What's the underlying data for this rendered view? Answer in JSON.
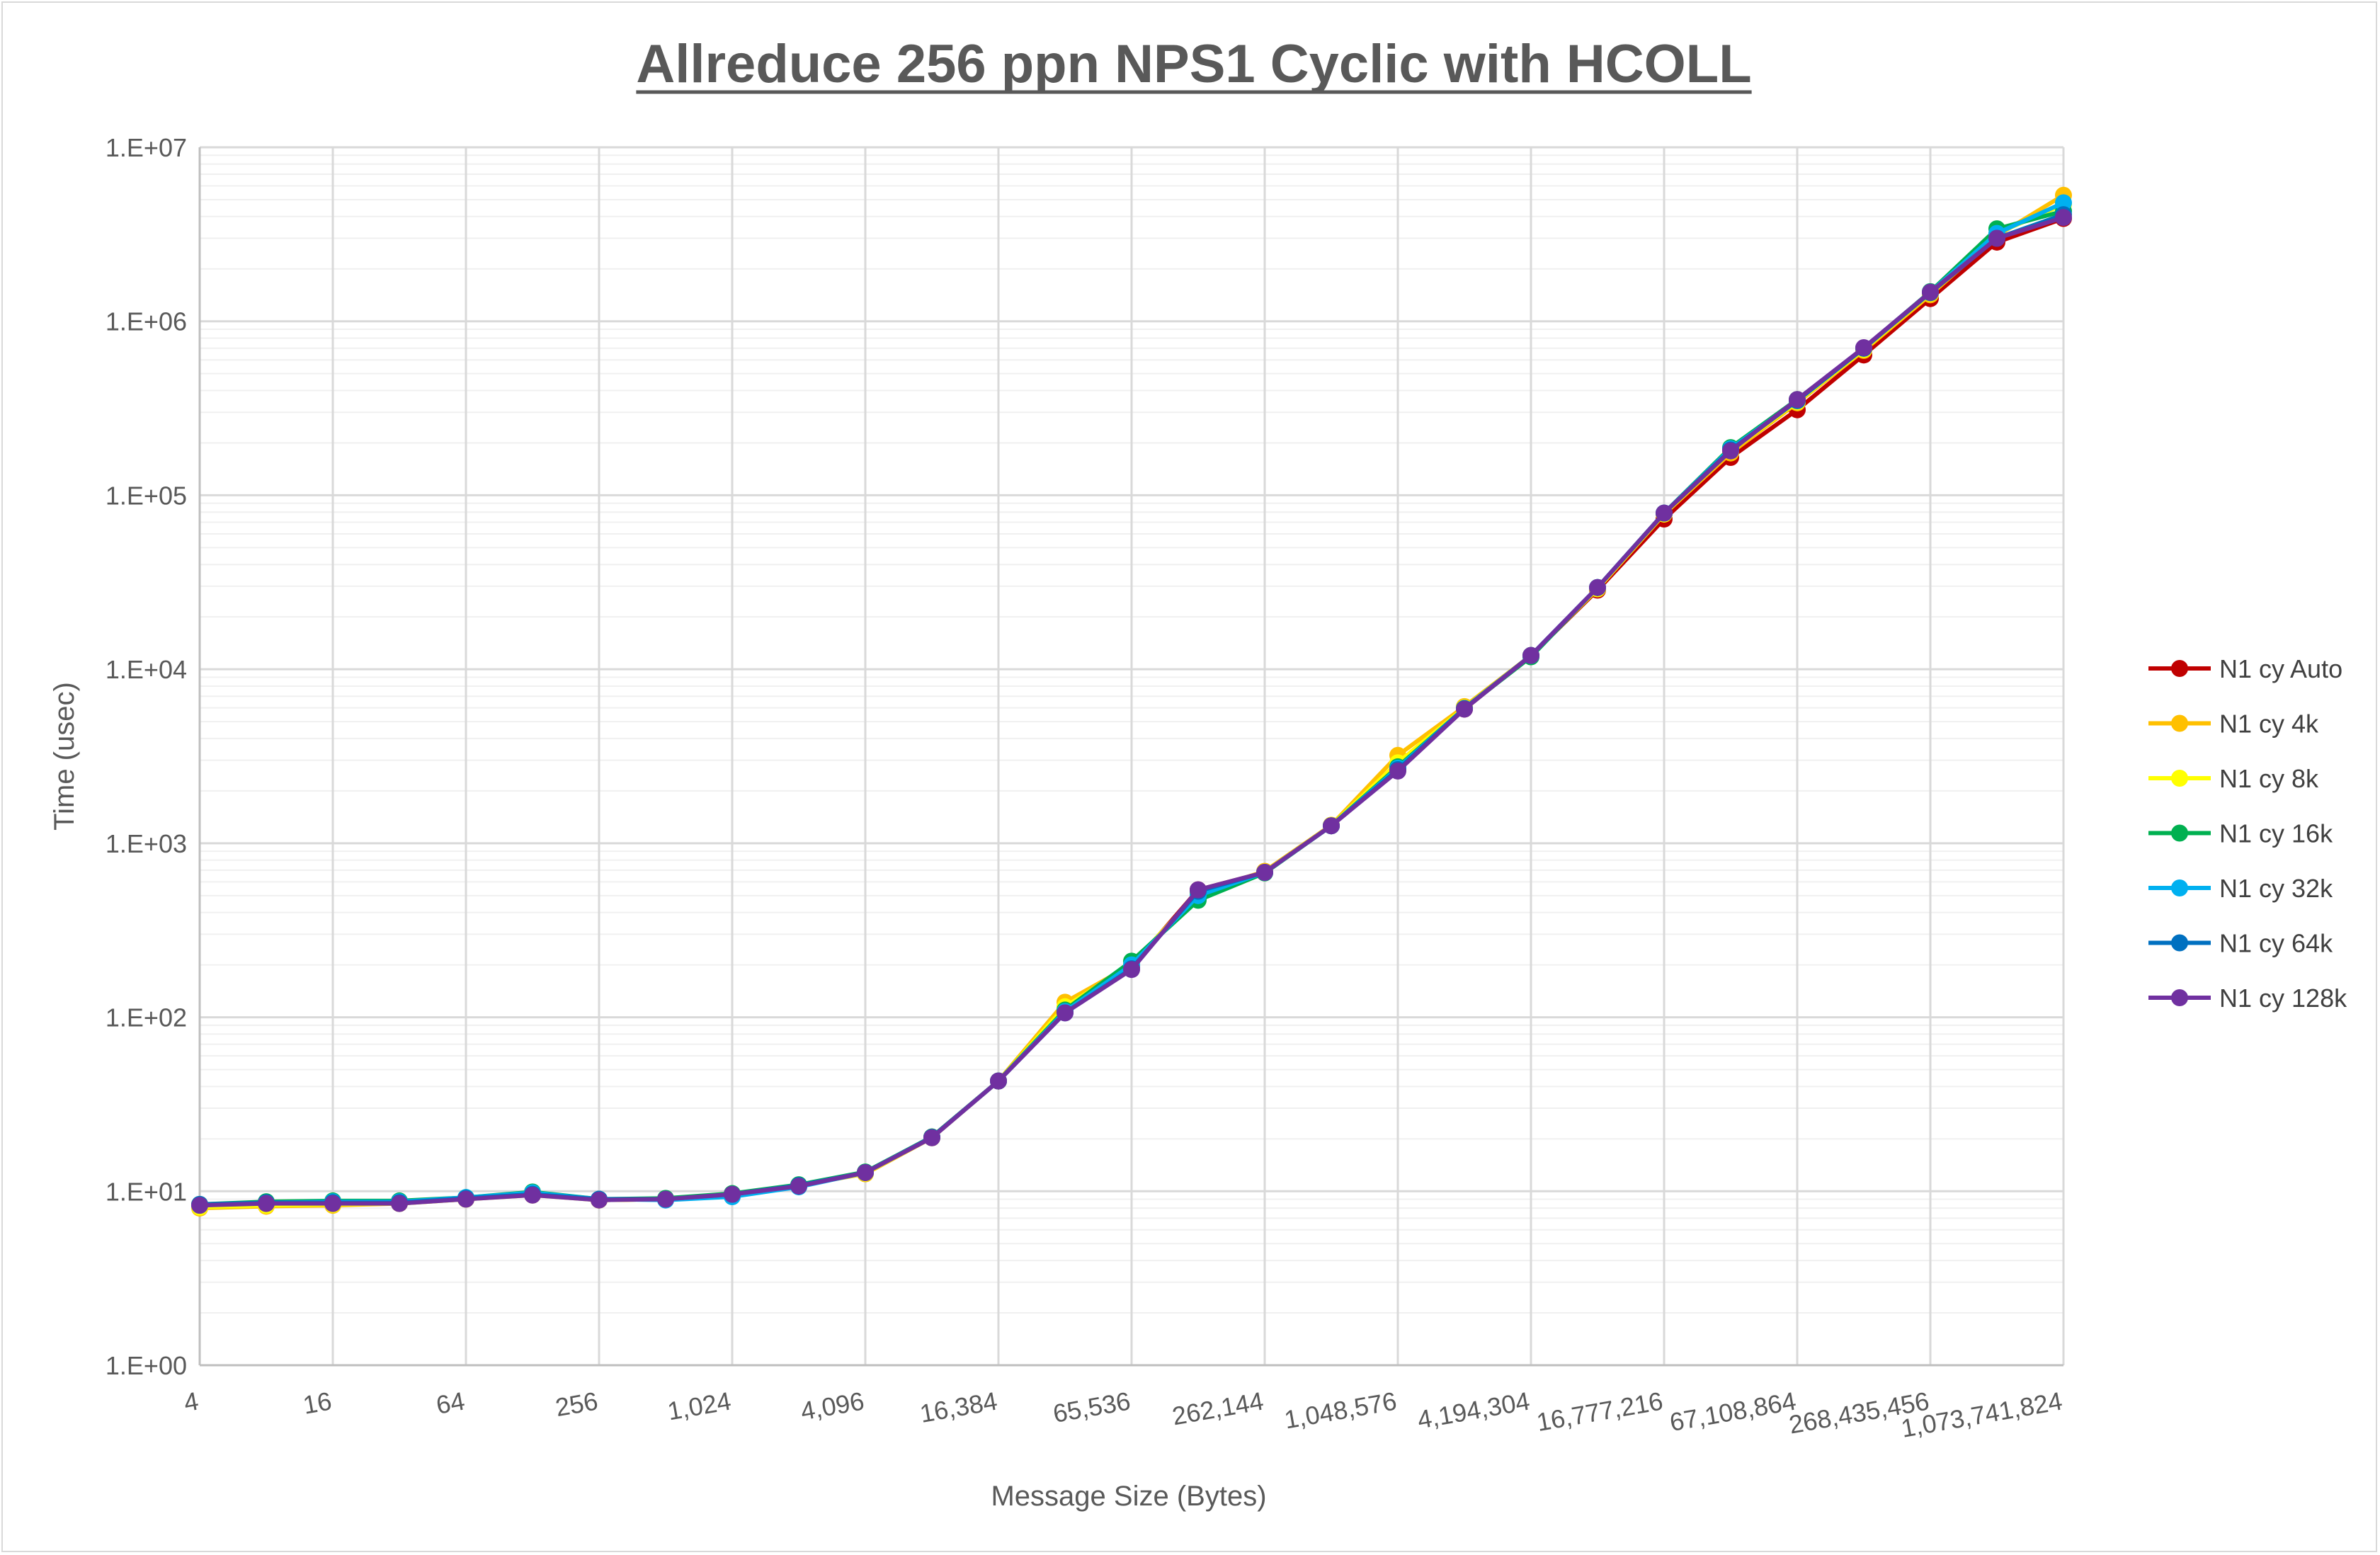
{
  "chart_data": {
    "type": "line",
    "title": "Allreduce 256 ppn NPS1 Cyclic with HCOLL",
    "xlabel": "Message Size (Bytes)",
    "ylabel": "Time (usec)",
    "y_scale": "log",
    "ylim": [
      1,
      10000000
    ],
    "y_ticks": [
      "1.E+00",
      "1.E+01",
      "1.E+02",
      "1.E+03",
      "1.E+04",
      "1.E+05",
      "1.E+06",
      "1.E+07"
    ],
    "x": [
      4,
      8,
      16,
      32,
      64,
      128,
      256,
      512,
      1024,
      2048,
      4096,
      8192,
      16384,
      32768,
      65536,
      131072,
      262144,
      524288,
      1048576,
      2097152,
      4194304,
      8388608,
      16777216,
      33554432,
      67108864,
      134217728,
      268435456,
      536870912,
      1073741824
    ],
    "x_tick_labels": [
      "4",
      "16",
      "64",
      "256",
      "1,024",
      "4,096",
      "16,384",
      "65,536",
      "262,144",
      "1,048,576",
      "4,194,304",
      "16,777,216",
      "67,108,864",
      "268,435,456",
      "1,073,741,824"
    ],
    "legend_position": "right",
    "grid": true,
    "series": [
      {
        "name": "N1 cy Auto",
        "color": "#c00000",
        "values": [
          8.2,
          8.4,
          8.5,
          8.6,
          9.1,
          9.6,
          8.9,
          9.0,
          9.6,
          10.8,
          12.8,
          20.5,
          43,
          108,
          195,
          540,
          680,
          1260,
          2650,
          5900,
          12000,
          28500,
          73000,
          165000,
          310000,
          640000,
          1350000,
          2850000,
          3900000
        ]
      },
      {
        "name": "N1 cy 4k",
        "color": "#ffc000",
        "values": [
          8.0,
          8.2,
          8.3,
          8.5,
          9.0,
          9.5,
          8.9,
          9.0,
          9.6,
          10.8,
          12.6,
          20.3,
          43,
          122,
          200,
          520,
          690,
          1270,
          3200,
          6100,
          12000,
          29000,
          78000,
          175000,
          340000,
          680000,
          1420000,
          3100000,
          5300000
        ]
      },
      {
        "name": "N1 cy 8k",
        "color": "#ffff00",
        "values": [
          8.1,
          8.3,
          8.4,
          8.5,
          9.0,
          9.6,
          8.9,
          9.0,
          9.6,
          10.8,
          12.7,
          20.4,
          43,
          115,
          200,
          520,
          680,
          1265,
          2900,
          6000,
          12000,
          29000,
          78000,
          180000,
          345000,
          690000,
          1450000,
          3200000,
          4700000
        ]
      },
      {
        "name": "N1 cy 16k",
        "color": "#00b050",
        "values": [
          8.4,
          8.7,
          8.8,
          8.8,
          9.2,
          9.9,
          9.0,
          9.1,
          9.7,
          10.9,
          12.9,
          20.5,
          43,
          110,
          210,
          470,
          675,
          1260,
          2750,
          5950,
          11800,
          29500,
          79000,
          188000,
          355000,
          700000,
          1480000,
          3400000,
          4300000
        ]
      },
      {
        "name": "N1 cy 32k",
        "color": "#00b0f0",
        "values": [
          8.3,
          8.6,
          8.7,
          8.7,
          9.2,
          9.8,
          9.0,
          8.9,
          9.3,
          10.6,
          12.8,
          20.4,
          43,
          108,
          200,
          500,
          680,
          1260,
          2700,
          5950,
          12000,
          29500,
          79000,
          185000,
          350000,
          700000,
          1470000,
          3200000,
          4800000
        ]
      },
      {
        "name": "N1 cy 64k",
        "color": "#0070c0",
        "values": [
          8.4,
          8.6,
          8.6,
          8.6,
          9.1,
          9.6,
          9.0,
          9.0,
          9.6,
          10.8,
          12.8,
          20.4,
          43,
          106,
          190,
          530,
          680,
          1260,
          2650,
          5950,
          12000,
          29500,
          79000,
          182000,
          350000,
          700000,
          1460000,
          3000000,
          4100000
        ]
      },
      {
        "name": "N1 cy 128k",
        "color": "#7030a0",
        "values": [
          8.3,
          8.5,
          8.5,
          8.5,
          9.0,
          9.5,
          8.9,
          9.0,
          9.6,
          10.7,
          12.8,
          20.3,
          43,
          106,
          188,
          540,
          680,
          1260,
          2600,
          5900,
          12000,
          29500,
          79000,
          180000,
          355000,
          705000,
          1470000,
          3000000,
          3950000
        ]
      }
    ]
  }
}
